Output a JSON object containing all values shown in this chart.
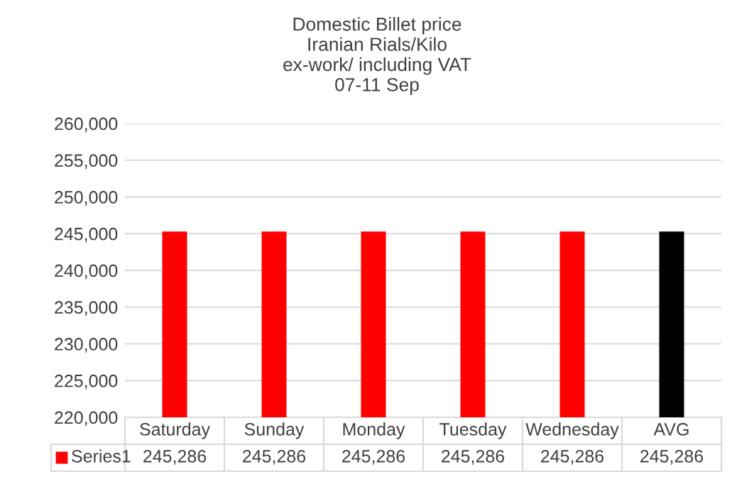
{
  "chart_data": {
    "type": "bar",
    "title": "Domestic Billet price\nIranian Rials/Kilo\nex-work/ including VAT\n07-11 Sep",
    "categories": [
      "Saturday",
      "Sunday",
      "Monday",
      "Tuesday",
      "Wednesday",
      "AVG"
    ],
    "series": [
      {
        "name": "Series1",
        "color": "#ff0000",
        "colors": [
          "#ff0000",
          "#ff0000",
          "#ff0000",
          "#ff0000",
          "#ff0000",
          "#000000"
        ],
        "values": [
          245286,
          245286,
          245286,
          245286,
          245286,
          245286
        ],
        "value_labels": [
          "245,286",
          "245,286",
          "245,286",
          "245,286",
          "245,286",
          "245,286"
        ]
      }
    ],
    "ylim": [
      220000,
      260000
    ],
    "yticks": [
      {
        "value": 220000,
        "label": "220,000"
      },
      {
        "value": 225000,
        "label": "225,000"
      },
      {
        "value": 230000,
        "label": "230,000"
      },
      {
        "value": 235000,
        "label": "235,000"
      },
      {
        "value": 240000,
        "label": "240,000"
      },
      {
        "value": 245000,
        "label": "245,000"
      },
      {
        "value": 250000,
        "label": "250,000"
      },
      {
        "value": 255000,
        "label": "255,000"
      },
      {
        "value": 260000,
        "label": "260,000"
      }
    ],
    "grid": "y"
  }
}
